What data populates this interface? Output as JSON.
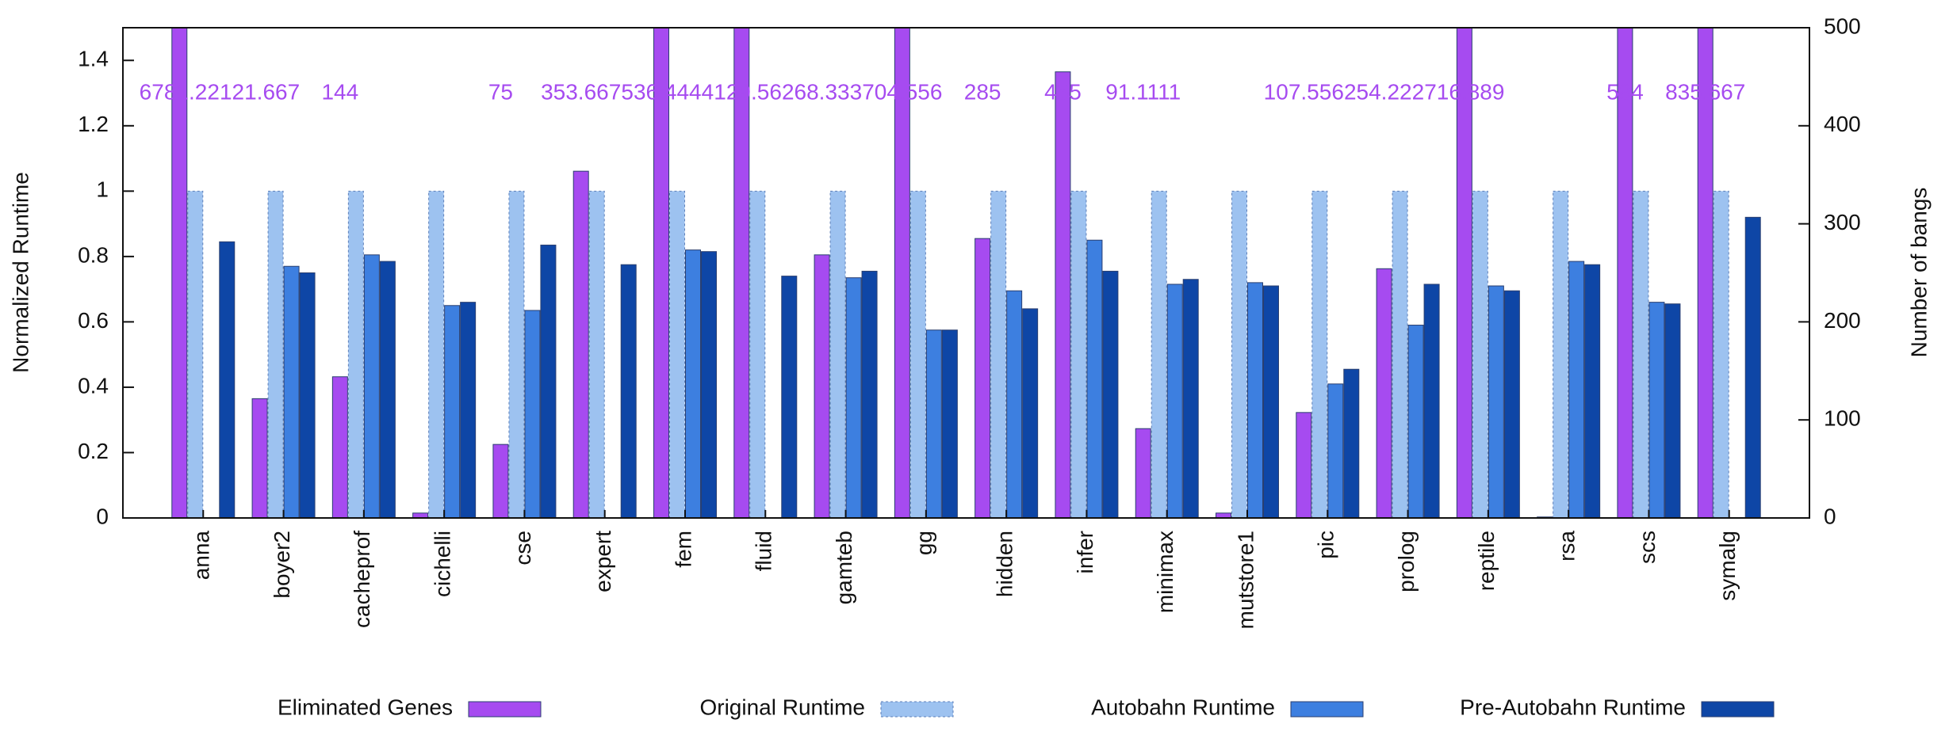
{
  "chart_data": {
    "type": "bar",
    "ylabel": "Normalized Runtime",
    "y2label": "Number of bangs",
    "categories": [
      "anna",
      "boyer2",
      "cacheprof",
      "cichelli",
      "cse",
      "expert",
      "fem",
      "fluid",
      "gamteb",
      "gg",
      "hidden",
      "infer",
      "minimax",
      "mutstore1",
      "pic",
      "prolog",
      "reptile",
      "rsa",
      "scs",
      "symalg"
    ],
    "ylim": [
      0,
      1.5
    ],
    "yticks": [
      0,
      0.2,
      0.4,
      0.6,
      0.8,
      1,
      1.2,
      1.4
    ],
    "y2lim": [
      0,
      500
    ],
    "y2ticks": [
      0,
      100,
      200,
      300,
      400,
      500
    ],
    "series": [
      {
        "name": "Eliminated Genes",
        "color": "#a64bf0",
        "axis": "y2",
        "values": [
          6781.22,
          121.667,
          144,
          5,
          75,
          353.667,
          536.444,
          4129.56,
          268.333,
          704.556,
          285,
          455,
          91.1111,
          5,
          107.556,
          254.222,
          716.889,
          1,
          584,
          835.667
        ],
        "value_labels": [
          "6781.22",
          "121.667",
          "144",
          null,
          "75",
          "353.667",
          "536.444",
          "4129.56",
          "268.333",
          "704.556",
          "285",
          "455",
          "91.1111",
          null,
          "107.556",
          "254.222",
          "716.889",
          null,
          "584",
          "835.667"
        ]
      },
      {
        "name": "Original Runtime",
        "color": "#9dc2f0",
        "values": [
          1,
          1,
          1,
          1,
          1,
          1,
          1,
          1,
          1,
          1,
          1,
          1,
          1,
          1,
          1,
          1,
          1,
          1,
          1,
          1
        ]
      },
      {
        "name": "Autobahn Runtime",
        "color": "#3d7fe0",
        "values": [
          null,
          0.77,
          0.805,
          0.65,
          0.635,
          null,
          0.82,
          null,
          0.735,
          0.575,
          0.695,
          0.85,
          0.715,
          0.72,
          0.41,
          0.59,
          0.71,
          0.785,
          0.66,
          null
        ]
      },
      {
        "name": "Pre-Autobahn Runtime",
        "color": "#0e46a6",
        "values": [
          0.845,
          0.75,
          0.785,
          0.66,
          0.835,
          0.775,
          0.815,
          0.74,
          0.755,
          0.575,
          0.64,
          0.755,
          0.73,
          0.71,
          0.455,
          0.715,
          0.695,
          0.775,
          0.655,
          0.92
        ]
      }
    ]
  }
}
